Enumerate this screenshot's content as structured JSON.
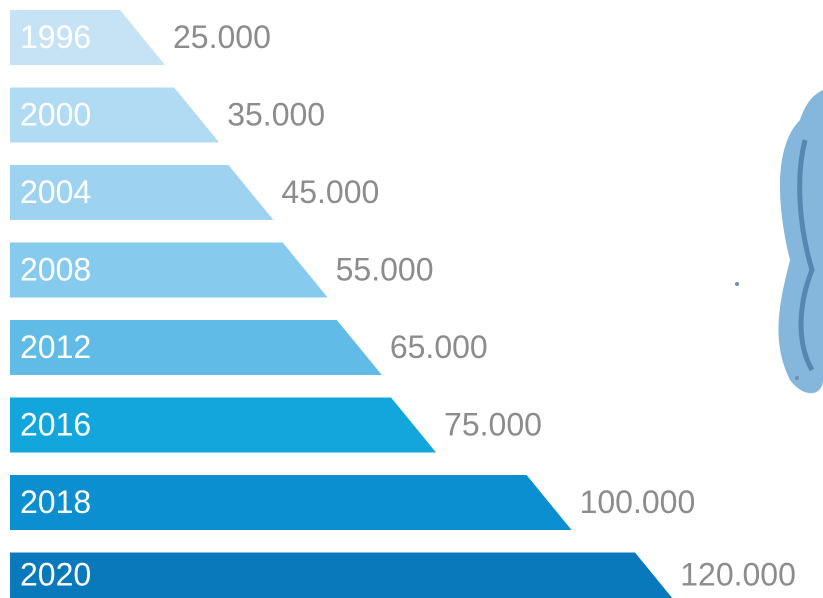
{
  "chart_data": {
    "type": "bar",
    "categories": [
      "1996",
      "2000",
      "2004",
      "2008",
      "2012",
      "2016",
      "2018",
      "2020"
    ],
    "values": [
      25000,
      35000,
      45000,
      55000,
      65000,
      75000,
      100000,
      120000
    ],
    "value_labels": [
      "25.000",
      "35.000",
      "45.000",
      "55.000",
      "65.000",
      "75.000",
      "100.000",
      "120.000"
    ],
    "colors": [
      "#c6e3f5",
      "#b1dbf3",
      "#9dd3f0",
      "#86caed",
      "#61bbe7",
      "#12a6dc",
      "#0b8fd0",
      "#0a79bb"
    ]
  }
}
